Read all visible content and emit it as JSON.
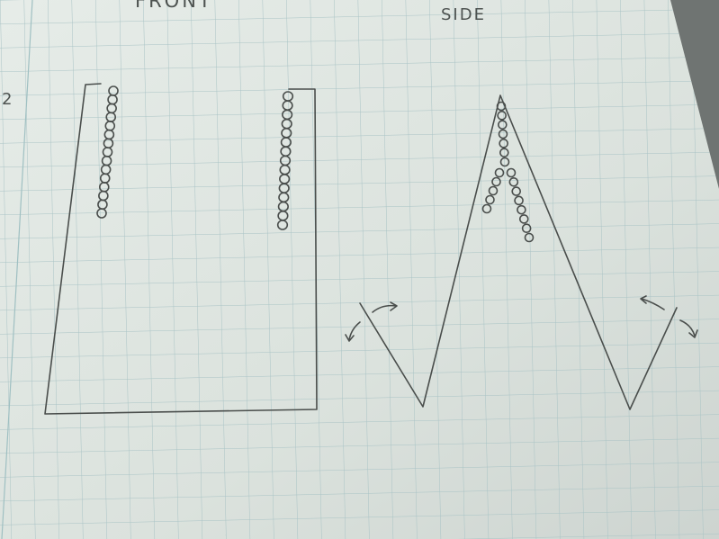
{
  "labels": {
    "front": "FRONT",
    "side": "SIDE",
    "margin_number": "2"
  },
  "colors": {
    "paper": "#dde4df",
    "grid": "#a9c3c5",
    "pencil": "#4a4e4c",
    "desk": "#6f7472"
  },
  "figures": {
    "front": {
      "shape": "rectangle-with-two-slits",
      "chains": 2
    },
    "side": {
      "shape": "zigzag",
      "chains": 2,
      "motion_arrows": 4
    }
  }
}
